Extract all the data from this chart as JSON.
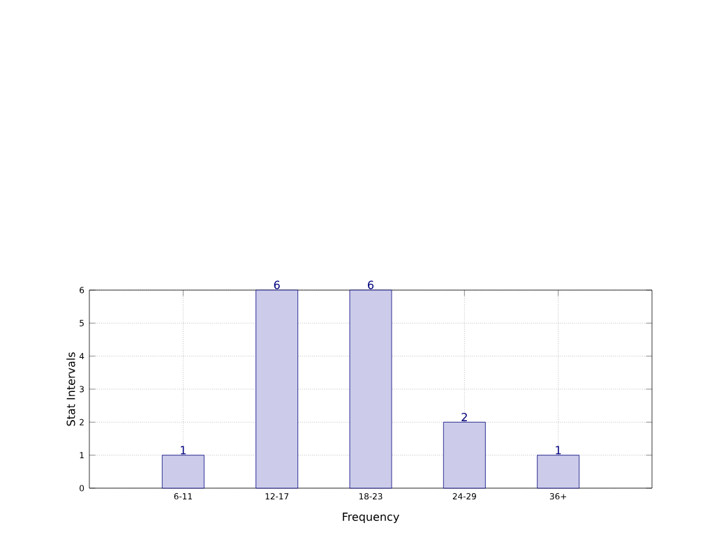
{
  "chart_data": {
    "type": "bar",
    "xlabel": "Frequency",
    "ylabel": "Stat Intervals",
    "categories": [
      "6-11",
      "12-17",
      "18-23",
      "24-29",
      "36+"
    ],
    "values": [
      1,
      6,
      6,
      2,
      1
    ],
    "color": "#ccccea",
    "ylim": [
      0,
      6
    ],
    "yticks": [
      0,
      1,
      2,
      3,
      4,
      5,
      6
    ],
    "grid": true,
    "data_labels": true
  }
}
